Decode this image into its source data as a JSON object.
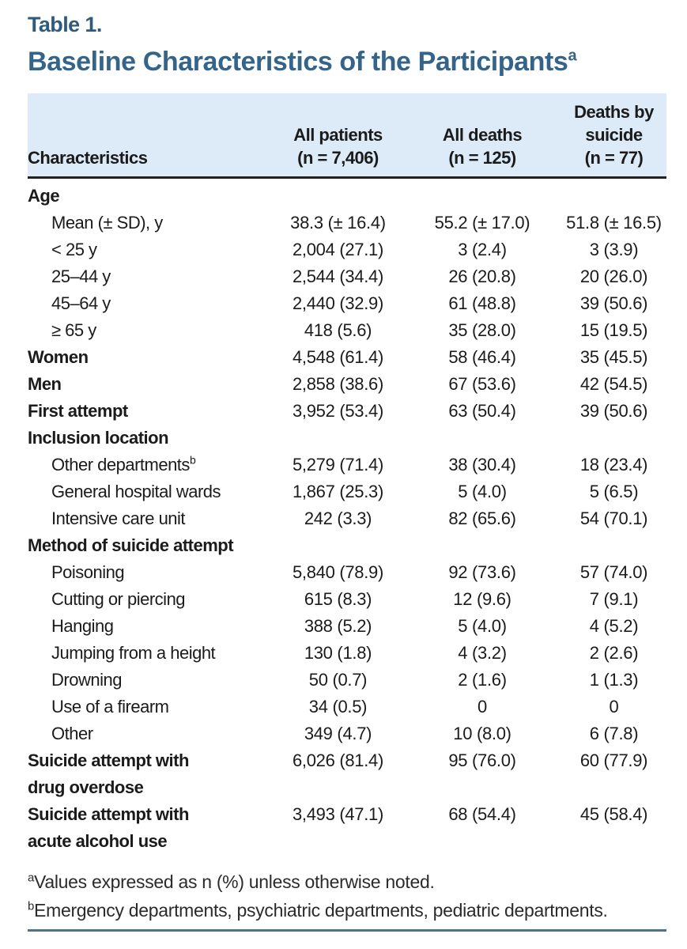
{
  "page": {
    "eyebrow": "Table 1.",
    "title": "Baseline Characteristics of the Participants",
    "title_sup": "a"
  },
  "colors": {
    "title_blue": "#35648b",
    "eyebrow_blue": "#2e5a7d",
    "header_background": "#dcebf7",
    "header_rule": "#212121",
    "bottom_rule": "#4d7191"
  },
  "table": {
    "columns": [
      {
        "label": "Characteristics"
      },
      {
        "label": "All patients\n(n = 7,406)"
      },
      {
        "label": "All deaths\n(n = 125)"
      },
      {
        "label": "Deaths by\nsuicide\n(n = 77)"
      }
    ],
    "rows": [
      {
        "label": "Age",
        "bold": true,
        "indent": false,
        "values": [
          "",
          "",
          ""
        ]
      },
      {
        "label": "Mean (± SD), y",
        "bold": false,
        "indent": true,
        "values": [
          "38.3 (± 16.4)",
          "55.2 (± 17.0)",
          "51.8 (± 16.5)"
        ]
      },
      {
        "label": "< 25 y",
        "bold": false,
        "indent": true,
        "values": [
          "2,004 (27.1)",
          "3 (2.4)",
          "3 (3.9)"
        ]
      },
      {
        "label": "25–44 y",
        "bold": false,
        "indent": true,
        "values": [
          "2,544 (34.4)",
          "26 (20.8)",
          "20 (26.0)"
        ]
      },
      {
        "label": "45–64 y",
        "bold": false,
        "indent": true,
        "values": [
          "2,440 (32.9)",
          "61 (48.8)",
          "39 (50.6)"
        ]
      },
      {
        "label": "≥ 65 y",
        "bold": false,
        "indent": true,
        "values": [
          "418 (5.6)",
          "35 (28.0)",
          "15 (19.5)"
        ]
      },
      {
        "label": "Women",
        "bold": true,
        "indent": false,
        "values": [
          "4,548 (61.4)",
          "58 (46.4)",
          "35 (45.5)"
        ]
      },
      {
        "label": "Men",
        "bold": true,
        "indent": false,
        "values": [
          "2,858 (38.6)",
          "67 (53.6)",
          "42 (54.5)"
        ]
      },
      {
        "label": "First attempt",
        "bold": true,
        "indent": false,
        "values": [
          "3,952 (53.4)",
          "63 (50.4)",
          "39 (50.6)"
        ]
      },
      {
        "label": "Inclusion location",
        "bold": true,
        "indent": false,
        "values": [
          "",
          "",
          ""
        ]
      },
      {
        "label": "Other departments",
        "sup": "b",
        "bold": false,
        "indent": true,
        "values": [
          "5,279 (71.4)",
          "38 (30.4)",
          "18 (23.4)"
        ]
      },
      {
        "label": "General hospital wards",
        "bold": false,
        "indent": true,
        "values": [
          "1,867 (25.3)",
          "5 (4.0)",
          "5 (6.5)"
        ]
      },
      {
        "label": "Intensive care unit",
        "bold": false,
        "indent": true,
        "values": [
          "242 (3.3)",
          "82 (65.6)",
          "54 (70.1)"
        ]
      },
      {
        "label": "Method of suicide attempt",
        "bold": true,
        "indent": false,
        "values": [
          "",
          "",
          ""
        ]
      },
      {
        "label": "Poisoning",
        "bold": false,
        "indent": true,
        "values": [
          "5,840 (78.9)",
          "92 (73.6)",
          "57 (74.0)"
        ]
      },
      {
        "label": "Cutting or piercing",
        "bold": false,
        "indent": true,
        "values": [
          "615 (8.3)",
          "12 (9.6)",
          "7 (9.1)"
        ]
      },
      {
        "label": "Hanging",
        "bold": false,
        "indent": true,
        "values": [
          "388 (5.2)",
          "5 (4.0)",
          "4 (5.2)"
        ]
      },
      {
        "label": "Jumping from a height",
        "bold": false,
        "indent": true,
        "values": [
          "130 (1.8)",
          "4 (3.2)",
          "2 (2.6)"
        ]
      },
      {
        "label": "Drowning",
        "bold": false,
        "indent": true,
        "values": [
          "50 (0.7)",
          "2 (1.6)",
          "1 (1.3)"
        ]
      },
      {
        "label": "Use of a firearm",
        "bold": false,
        "indent": true,
        "values": [
          "34 (0.5)",
          "0",
          "0"
        ]
      },
      {
        "label": "Other",
        "bold": false,
        "indent": true,
        "values": [
          "349 (4.7)",
          "10 (8.0)",
          "6 (7.8)"
        ]
      },
      {
        "label": "Suicide attempt with\ndrug overdose",
        "bold": true,
        "indent": false,
        "values": [
          "6,026 (81.4)",
          "95 (76.0)",
          "60 (77.9)"
        ]
      },
      {
        "label": "Suicide attempt with\nacute alcohol use",
        "bold": true,
        "indent": false,
        "values": [
          "3,493 (47.1)",
          "68 (54.4)",
          "45 (58.4)"
        ]
      }
    ]
  },
  "footnotes": [
    {
      "sup": "a",
      "text": "Values expressed as n (%) unless otherwise noted."
    },
    {
      "sup": "b",
      "text": "Emergency departments, psychiatric departments, pediatric departments."
    }
  ]
}
